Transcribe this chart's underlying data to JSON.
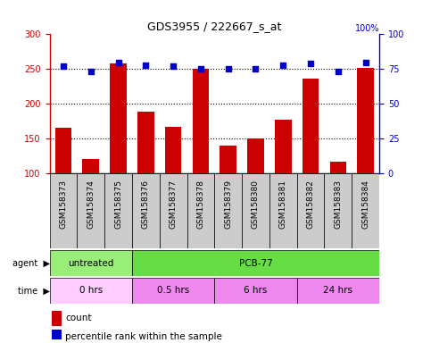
{
  "title": "GDS3955 / 222667_s_at",
  "samples": [
    "GSM158373",
    "GSM158374",
    "GSM158375",
    "GSM158376",
    "GSM158377",
    "GSM158378",
    "GSM158379",
    "GSM158380",
    "GSM158381",
    "GSM158382",
    "GSM158383",
    "GSM158384"
  ],
  "counts": [
    165,
    120,
    258,
    189,
    167,
    250,
    140,
    150,
    177,
    236,
    117,
    252
  ],
  "percentile_ranks": [
    77,
    73,
    80,
    78,
    77,
    75,
    75,
    75,
    78,
    79,
    73,
    80
  ],
  "bar_color": "#cc0000",
  "dot_color": "#0000cc",
  "ylim_left": [
    100,
    300
  ],
  "ylim_right": [
    0,
    100
  ],
  "yticks_left": [
    100,
    150,
    200,
    250,
    300
  ],
  "yticks_right": [
    0,
    25,
    50,
    75,
    100
  ],
  "dotted_lines": [
    150,
    200,
    250
  ],
  "agent_groups": [
    {
      "label": "untreated",
      "start": 0,
      "end": 3,
      "color": "#99ee77"
    },
    {
      "label": "PCB-77",
      "start": 3,
      "end": 12,
      "color": "#66dd44"
    }
  ],
  "time_groups": [
    {
      "label": "0 hrs",
      "start": 0,
      "end": 3,
      "color": "#ffccff"
    },
    {
      "label": "0.5 hrs",
      "start": 3,
      "end": 6,
      "color": "#ee88ee"
    },
    {
      "label": "6 hrs",
      "start": 6,
      "end": 9,
      "color": "#ee88ee"
    },
    {
      "label": "24 hrs",
      "start": 9,
      "end": 12,
      "color": "#ee88ee"
    }
  ],
  "legend_count_color": "#cc0000",
  "legend_prank_color": "#0000cc",
  "xtick_bg": "#cccccc",
  "plot_bg": "#ffffff"
}
